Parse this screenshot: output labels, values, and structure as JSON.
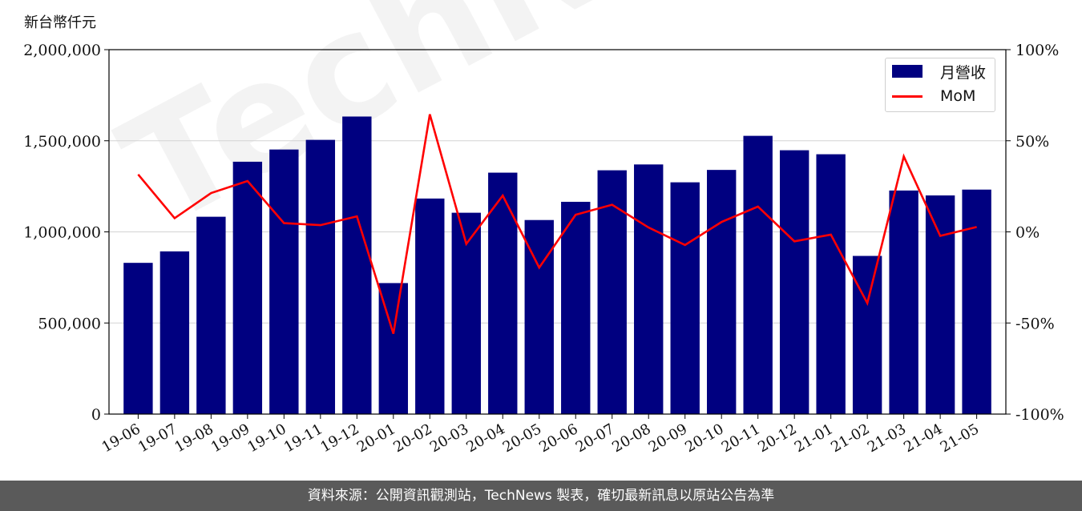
{
  "y_unit_label": "新台幣仟元",
  "footer_text": "資料來源：公開資訊觀測站，TechNews 製表，確切最新訊息以原站公告為準",
  "chart_data": {
    "type": "bar",
    "categories": [
      "19-06",
      "19-07",
      "19-08",
      "19-09",
      "19-10",
      "19-11",
      "19-12",
      "20-01",
      "20-02",
      "20-03",
      "20-04",
      "20-05",
      "20-06",
      "20-07",
      "20-08",
      "20-09",
      "20-10",
      "20-11",
      "20-12",
      "21-01",
      "21-02",
      "21-03",
      "21-04",
      "21-05"
    ],
    "series": [
      {
        "name": "月營收",
        "type": "bar",
        "axis": "left",
        "color": "#000080",
        "values": [
          830000,
          893000,
          1083000,
          1385000,
          1452000,
          1505000,
          1633000,
          719000,
          1183000,
          1105000,
          1325000,
          1065000,
          1165000,
          1338000,
          1370000,
          1272000,
          1340000,
          1527000,
          1448000,
          1426000,
          868000,
          1227000,
          1200000,
          1232000
        ]
      },
      {
        "name": "MoM",
        "type": "line",
        "axis": "right",
        "color": "#ff0000",
        "values": [
          31.5,
          7.5,
          21.3,
          27.9,
          4.8,
          3.7,
          8.5,
          -55.9,
          64.5,
          -6.6,
          19.9,
          -19.6,
          9.4,
          14.9,
          2.4,
          -7.2,
          5.4,
          13.9,
          -5.2,
          -1.5,
          -39.1,
          41.4,
          -2.2,
          2.7
        ]
      }
    ],
    "y_left": {
      "ylim": [
        0,
        2000000
      ],
      "ticks": [
        "0",
        "500,000",
        "1,000,000",
        "1,500,000",
        "2,000,000"
      ]
    },
    "y_right": {
      "ylim": [
        -100,
        100
      ],
      "ticks": [
        "-100%",
        "-50%",
        "0%",
        "50%",
        "100%"
      ]
    },
    "grid": "horizontal",
    "legend_position": "top-right",
    "legend": [
      {
        "label": "月營收",
        "kind": "bar",
        "color": "#000080"
      },
      {
        "label": "MoM",
        "kind": "line",
        "color": "#ff0000"
      }
    ],
    "watermark": "TechNews"
  }
}
